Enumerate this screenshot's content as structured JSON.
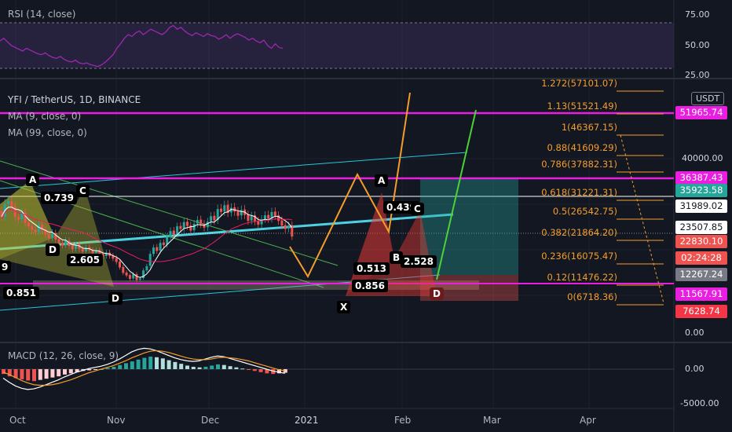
{
  "header": {
    "title": "YFI / TetherUS, 1D, BINANCE",
    "currency": "USDT"
  },
  "rsi": {
    "label": "RSI (14, close)",
    "levels": [
      "75.00",
      "50.00",
      "25.00"
    ]
  },
  "ma": {
    "ma9": "MA (9, close, 0)",
    "ma99": "MA (99, close, 0)"
  },
  "macd": {
    "label": "MACD (12, 26, close, 9)",
    "levels": [
      "0.00",
      "-5000.00"
    ]
  },
  "price_axis": {
    "ticks": [
      "40000.00",
      "0.00"
    ],
    "tags": [
      {
        "value": "51965.74",
        "bg": "#e91ee1"
      },
      {
        "value": "36387.43",
        "bg": "#e91ee1"
      },
      {
        "value": "35923.58",
        "bg": "#26a69a"
      },
      {
        "value": "31989.02",
        "bg": "#ffffff"
      },
      {
        "value": "23507.85",
        "bg": "#ffffff"
      },
      {
        "value": "22830.10",
        "bg": "#ef5350"
      },
      {
        "value": "02:24:28",
        "bg": "#ef5350"
      },
      {
        "value": "12267.24",
        "bg": "#787b86"
      },
      {
        "value": "11567.91",
        "bg": "#e91ee1"
      },
      {
        "value": "7628.74",
        "bg": "#f23645"
      }
    ]
  },
  "fib_levels": [
    {
      "label": "1.272(57101.07)"
    },
    {
      "label": "1.13(51521.49)"
    },
    {
      "label": "1(46367.15)"
    },
    {
      "label": "0.88(41609.29)"
    },
    {
      "label": "0.786(37882.31)"
    },
    {
      "label": "0.618(31221.31)"
    },
    {
      "label": "0.5(26542.75)"
    },
    {
      "label": "0.382(21864.20)"
    },
    {
      "label": "0.236(16075.47)"
    },
    {
      "label": "0.12(11476.22)"
    },
    {
      "label": "0(6718.36)"
    }
  ],
  "patterns": {
    "left": [
      {
        "text": "A"
      },
      {
        "text": "0.739"
      },
      {
        "text": "C"
      },
      {
        "text": "D"
      },
      {
        "text": "2.605"
      },
      {
        "text": "9"
      },
      {
        "text": "0.851"
      },
      {
        "text": "D"
      }
    ],
    "right": [
      {
        "text": "A"
      },
      {
        "text": "0.439"
      },
      {
        "text": "C"
      },
      {
        "text": "B"
      },
      {
        "text": "2.528"
      },
      {
        "text": "0.513"
      },
      {
        "text": "0.856"
      },
      {
        "text": "X"
      },
      {
        "text": "D"
      }
    ]
  },
  "time_axis": [
    "Oct",
    "Nov",
    "Dec",
    "2021",
    "Feb",
    "Mar",
    "Apr"
  ],
  "chart_data": {
    "type": "candlestick",
    "title": "YFI / TetherUS, 1D, BINANCE",
    "x_ticks": [
      "Oct",
      "Nov",
      "Dec",
      "2021",
      "Feb",
      "Mar",
      "Apr"
    ],
    "horizontal_levels": [
      51965.74,
      36387.43,
      11567.91
    ],
    "fibonacci": {
      "0": 6718.36,
      "0.12": 11476.22,
      "0.236": 16075.47,
      "0.382": 21864.2,
      "0.5": 26542.75,
      "0.618": 31221.31,
      "0.786": 37882.31,
      "0.88": 41609.29,
      "1": 46367.15,
      "1.13": 51521.49,
      "1.272": 57101.07
    },
    "last_price": 22830.1,
    "candles": [
      [
        28800,
        27500
      ],
      [
        27500,
        30500
      ],
      [
        30400,
        31200
      ],
      [
        31100,
        29800
      ],
      [
        29900,
        27500
      ],
      [
        27400,
        26800
      ],
      [
        26900,
        28600
      ],
      [
        28500,
        26000
      ],
      [
        26100,
        25200
      ],
      [
        25300,
        24400
      ],
      [
        24500,
        23800
      ],
      [
        23900,
        25500
      ],
      [
        25600,
        24300
      ],
      [
        24400,
        23300
      ],
      [
        23400,
        22400
      ],
      [
        22500,
        23700
      ],
      [
        23600,
        22100
      ],
      [
        22200,
        21300
      ],
      [
        21300,
        20700
      ],
      [
        20800,
        21900
      ],
      [
        21800,
        20600
      ],
      [
        20700,
        19800
      ],
      [
        19900,
        20800
      ],
      [
        20900,
        19900
      ],
      [
        19900,
        19200
      ],
      [
        19300,
        20200
      ],
      [
        20300,
        19600
      ],
      [
        19600,
        18800
      ],
      [
        18900,
        19500
      ],
      [
        19500,
        18600
      ],
      [
        18700,
        18100
      ],
      [
        18200,
        19000
      ],
      [
        19000,
        18200
      ],
      [
        18300,
        17600
      ],
      [
        17700,
        16800
      ],
      [
        16900,
        15500
      ],
      [
        15600,
        14200
      ],
      [
        14300,
        13600
      ],
      [
        13700,
        12800
      ],
      [
        12900,
        13900
      ],
      [
        13900,
        12500
      ],
      [
        12600,
        12900
      ],
      [
        13000,
        14800
      ],
      [
        14800,
        15800
      ],
      [
        15900,
        18700
      ],
      [
        18700,
        20200
      ],
      [
        20300,
        19400
      ],
      [
        19500,
        21300
      ],
      [
        21400,
        20800
      ],
      [
        20900,
        22700
      ],
      [
        22800,
        24100
      ],
      [
        24200,
        23300
      ],
      [
        23400,
        25200
      ],
      [
        25300,
        24600
      ],
      [
        24700,
        26200
      ],
      [
        26300,
        25300
      ],
      [
        25400,
        24200
      ],
      [
        24300,
        25800
      ],
      [
        25900,
        26700
      ],
      [
        26800,
        25700
      ],
      [
        25800,
        24900
      ],
      [
        25000,
        26300
      ],
      [
        26400,
        27600
      ],
      [
        27700,
        26600
      ],
      [
        26700,
        29300
      ],
      [
        29400,
        28600
      ],
      [
        28700,
        30200
      ],
      [
        30300,
        28400
      ],
      [
        28500,
        29600
      ],
      [
        29700,
        28700
      ],
      [
        28800,
        27700
      ],
      [
        27800,
        29100
      ],
      [
        29200,
        27900
      ],
      [
        28000,
        26500
      ],
      [
        26600,
        27700
      ],
      [
        27800,
        26400
      ],
      [
        26500,
        25600
      ],
      [
        25700,
        26900
      ],
      [
        27000,
        27800
      ],
      [
        27900,
        27000
      ],
      [
        27100,
        28600
      ],
      [
        28700,
        27700
      ],
      [
        27800,
        26500
      ],
      [
        26600,
        25400
      ],
      [
        25500,
        24600
      ],
      [
        24700,
        25400
      ],
      [
        25500,
        22800
      ]
    ],
    "rsi": [
      55,
      58,
      54,
      50,
      48,
      46,
      44,
      47,
      45,
      43,
      41,
      40,
      42,
      39,
      37,
      36,
      38,
      35,
      33,
      32,
      34,
      31,
      30,
      31,
      29,
      28,
      27,
      29,
      32,
      36,
      40,
      47,
      52,
      58,
      62,
      60,
      64,
      66,
      62,
      65,
      68,
      66,
      64,
      62,
      65,
      70,
      72,
      68,
      70,
      66,
      63,
      61,
      64,
      62,
      60,
      63,
      61,
      60,
      57,
      59,
      62,
      58,
      61,
      63,
      61,
      59,
      56,
      58,
      55,
      53,
      56,
      50,
      47,
      52,
      48,
      47
    ],
    "macd": {
      "hist": [
        -800,
        -1200,
        -1500,
        -1700,
        -1900,
        -2000,
        -1800,
        -1600,
        -1400,
        -1200,
        -900,
        -700,
        -500,
        -300,
        -200,
        -100,
        0,
        200,
        400,
        700,
        1000,
        1300,
        1600,
        1900,
        2100,
        2000,
        1800,
        1500,
        1200,
        900,
        600,
        400,
        300,
        400,
        600,
        800,
        700,
        500,
        300,
        100,
        -100,
        -300,
        -500,
        -700,
        -800,
        -700,
        -600
      ],
      "macd": [
        -1500,
        -2200,
        -2800,
        -3200,
        -3400,
        -3300,
        -3000,
        -2600,
        -2200,
        -1800,
        -1300,
        -900,
        -500,
        -200,
        100,
        300,
        500,
        800,
        1200,
        1700,
        2300,
        2900,
        3300,
        3500,
        3400,
        3100,
        2700,
        2300,
        1900,
        1600,
        1400,
        1300,
        1400,
        1700,
        2000,
        2200,
        2100,
        1800,
        1500,
        1200,
        900,
        600,
        300,
        0,
        -300,
        -500,
        -700
      ],
      "signal": [
        -500,
        -900,
        -1400,
        -1900,
        -2300,
        -2600,
        -2700,
        -2700,
        -2600,
        -2400,
        -2100,
        -1800,
        -1400,
        -1000,
        -600,
        -300,
        0,
        300,
        600,
        1000,
        1400,
        1900,
        2300,
        2700,
        3000,
        3100,
        3000,
        2800,
        2500,
        2200,
        1900,
        1700,
        1600,
        1600,
        1700,
        1900,
        2000,
        1900,
        1800,
        1600,
        1400,
        1100,
        800,
        500,
        200,
        -100,
        -300
      ]
    }
  }
}
